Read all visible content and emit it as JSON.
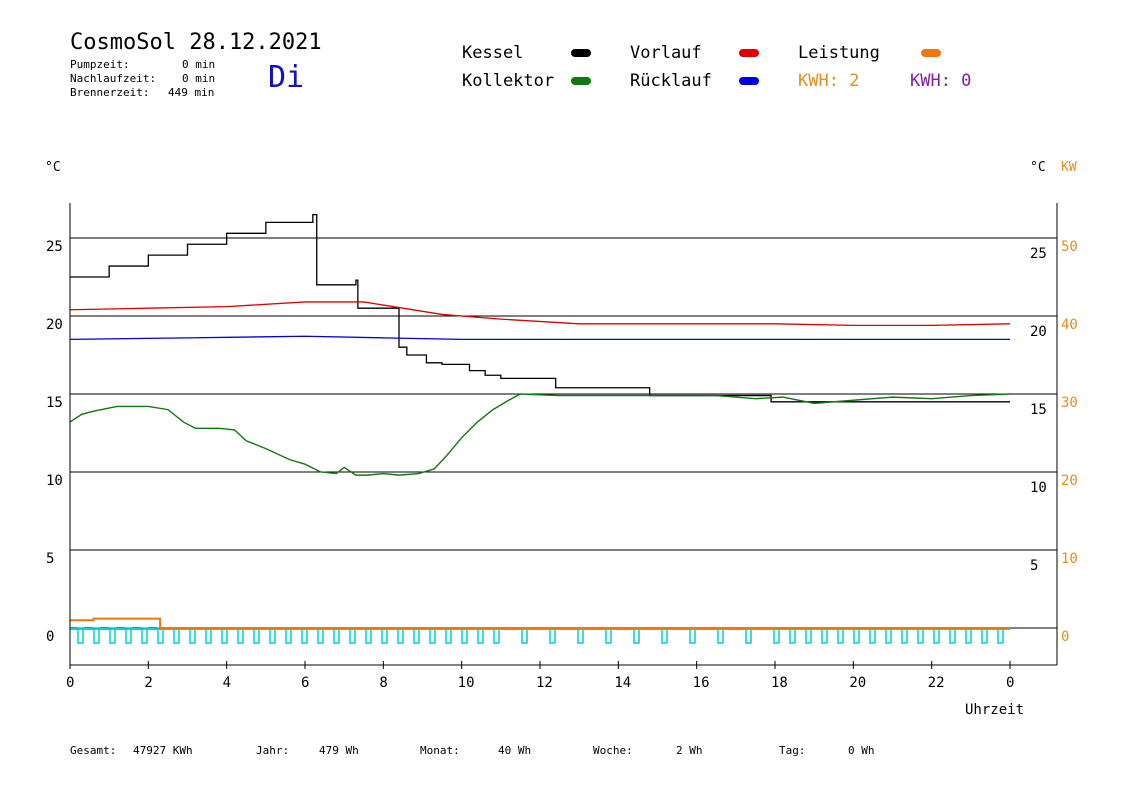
{
  "header": {
    "title": "CosmoSol 28.12.2021",
    "day": "Di",
    "pumpzeit_label": "Pumpzeit:",
    "pumpzeit_value": "0 min",
    "nachlauf_label": "Nachlaufzeit:",
    "nachlauf_value": "0 min",
    "brenner_label": "Brennerzeit:",
    "brenner_value": "449 min"
  },
  "legend": {
    "kessel": "Kessel",
    "kollektor": "Kollektor",
    "vorlauf": "Vorlauf",
    "ruecklauf": "Rücklauf",
    "leistung": "Leistung",
    "kwh1": "KWH: 2",
    "kwh2": "KWH: 0"
  },
  "colors": {
    "kessel": "#000000",
    "kollektor": "#117711",
    "vorlauf": "#dd0000",
    "ruecklauf": "#0000dd",
    "leistung": "#ee7711",
    "kwh_orange": "#e09020",
    "kwh_purple": "#8020a0",
    "pump": "#00d0d0",
    "kw_axis": "#e09020"
  },
  "axes": {
    "left_unit": "°C",
    "right_unit": "°C",
    "right_kw_unit": "KW",
    "xlabel": "Uhrzeit"
  },
  "footer": {
    "gesamt_label": "Gesamt:",
    "gesamt_value": "47927 KWh",
    "jahr_label": "Jahr:",
    "jahr_value": "479 Wh",
    "monat_label": "Monat:",
    "monat_value": "40 Wh",
    "woche_label": "Woche:",
    "woche_value": "2 Wh",
    "tag_label": "Tag:",
    "tag_value": "0 Wh"
  },
  "chart_data": {
    "type": "line",
    "x_unit": "hour",
    "xlim": [
      0,
      24
    ],
    "ylim": [
      -2,
      27
    ],
    "grid": true,
    "x_ticks": [
      "0",
      "2",
      "4",
      "6",
      "8",
      "10",
      "12",
      "14",
      "16",
      "18",
      "20",
      "22",
      "0"
    ],
    "y_left_ticks": [
      25,
      20,
      15,
      10,
      5,
      0
    ],
    "y_right_ticks": [
      25,
      20,
      15,
      10,
      5
    ],
    "y_kw_ticks": [
      50,
      40,
      30,
      20,
      10,
      0
    ],
    "series": [
      {
        "name": "Kessel",
        "color": "#000000",
        "step": true,
        "x": [
          0,
          1,
          2,
          3,
          4,
          5,
          6.2,
          6.3,
          6.5,
          7.3,
          7.35,
          8.2,
          8.4,
          8.6,
          9.1,
          9.5,
          10.2,
          10.6,
          11,
          12.2,
          12.4,
          14.5,
          14.8,
          17.7,
          17.9,
          24
        ],
        "y": [
          22.5,
          23.2,
          23.9,
          24.6,
          25.3,
          26,
          26.5,
          22,
          22,
          22.3,
          20.5,
          20.5,
          18,
          17.5,
          17,
          16.9,
          16.5,
          16.2,
          16,
          16,
          15.4,
          15.4,
          14.9,
          14.9,
          14.5,
          14.5
        ]
      },
      {
        "name": "Vorlauf",
        "color": "#dd0000",
        "step": false,
        "x": [
          0,
          2,
          4,
          6,
          7.5,
          8.5,
          9.5,
          11,
          13,
          16,
          18,
          20,
          22,
          24
        ],
        "y": [
          20.4,
          20.5,
          20.6,
          20.9,
          20.9,
          20.5,
          20.1,
          19.8,
          19.5,
          19.5,
          19.5,
          19.4,
          19.4,
          19.5
        ]
      },
      {
        "name": "Rücklauf",
        "color": "#0000dd",
        "step": false,
        "x": [
          0,
          3,
          6,
          8,
          10,
          12,
          16,
          20,
          24
        ],
        "y": [
          18.5,
          18.6,
          18.7,
          18.6,
          18.5,
          18.5,
          18.5,
          18.5,
          18.5
        ]
      },
      {
        "name": "Kollektor",
        "color": "#117711",
        "step": false,
        "x": [
          0,
          0.3,
          0.6,
          1.2,
          2.0,
          2.5,
          2.9,
          3.2,
          3.8,
          4.2,
          4.5,
          5.0,
          5.6,
          6.0,
          6.4,
          6.8,
          7.0,
          7.3,
          7.6,
          8.0,
          8.4,
          8.9,
          9.3,
          9.6,
          10.0,
          10.4,
          10.8,
          11.2,
          11.5,
          12.5,
          14,
          15.5,
          16.5,
          17.5,
          18.2,
          19,
          20,
          21,
          22,
          23,
          24
        ],
        "y": [
          13.2,
          13.7,
          13.9,
          14.2,
          14.2,
          14.0,
          13.2,
          12.8,
          12.8,
          12.7,
          12.0,
          11.5,
          10.8,
          10.5,
          10.0,
          9.9,
          10.3,
          9.8,
          9.8,
          9.9,
          9.8,
          9.9,
          10.2,
          11.0,
          12.2,
          13.2,
          14.0,
          14.6,
          15.0,
          14.9,
          14.9,
          14.9,
          14.9,
          14.7,
          14.8,
          14.4,
          14.6,
          14.8,
          14.7,
          14.9,
          15.0
        ]
      },
      {
        "name": "Leistung",
        "color": "#ee7711",
        "step": true,
        "x": [
          0,
          0.6,
          0.6,
          2.3,
          2.3,
          24
        ],
        "y": [
          0.5,
          0.5,
          0.6,
          0.6,
          0,
          0
        ]
      }
    ]
  }
}
